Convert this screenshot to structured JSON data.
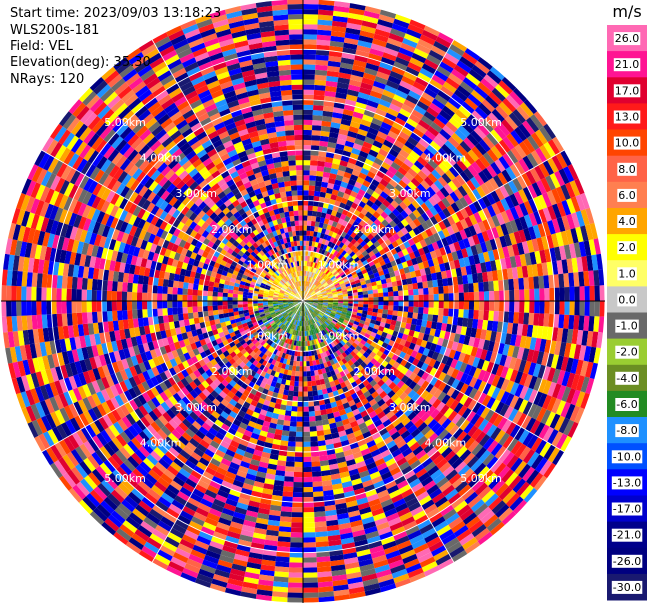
{
  "header": {
    "start_time": "Start time: 2023/09/03 13:18:23",
    "site": "WLS200s-181",
    "field": "Field: VEL",
    "elevation": "Elevation(deg): 35.30",
    "nrays": "NRays: 120"
  },
  "chart_data": {
    "type": "heatmap",
    "subtype": "polar-ppi",
    "field": "VEL",
    "elevation_deg": 35.3,
    "nrays": 120,
    "max_range_km": 6,
    "range_ring_labels": [
      "1.00km",
      "2.00km",
      "3.00km",
      "4.00km",
      "5.00km"
    ],
    "colorbar": {
      "unit": "m/s",
      "ticks": [
        "26.0",
        "21.0",
        "17.0",
        "13.0",
        "10.0",
        "8.0",
        "6.0",
        "4.0",
        "2.0",
        "1.0",
        "0.0",
        "-1.0",
        "-2.0",
        "-4.0",
        "-6.0",
        "-8.0",
        "-10.0",
        "-13.0",
        "-17.0",
        "-21.0",
        "-26.0",
        "-30.0"
      ],
      "colors": [
        "#ff69b4",
        "#ff1493",
        "#e00030",
        "#ff1a1a",
        "#ff4500",
        "#ff6347",
        "#ff7f50",
        "#ffa500",
        "#ffff00",
        "#ffff66",
        "#c8c8c8",
        "#696969",
        "#9acd32",
        "#6b8e23",
        "#228b22",
        "#1e90ff",
        "#0050ff",
        "#0000ff",
        "#0000cd",
        "#00008b",
        "#000080",
        "#191970"
      ]
    }
  }
}
